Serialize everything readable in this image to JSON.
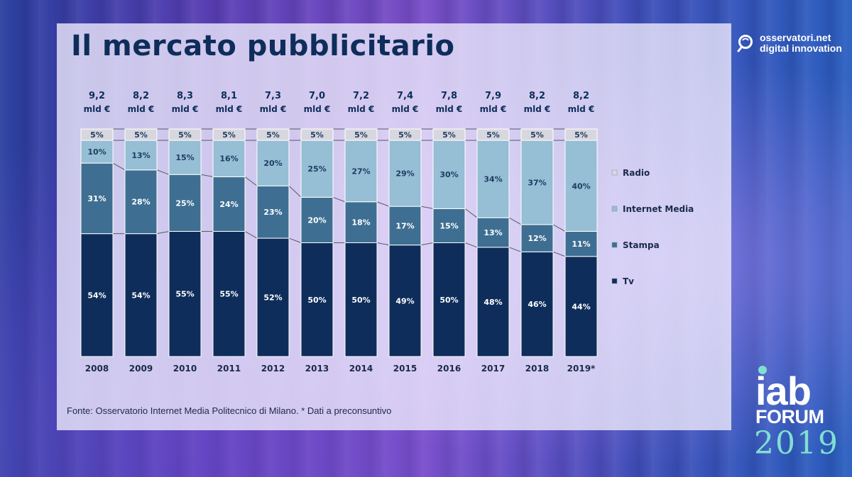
{
  "title": "Il mercato pubblicitario",
  "brand": {
    "line1": "osservatori.net",
    "line2": "digital innovation"
  },
  "footer": "Fonte: Osservatorio Internet Media Politecnico di Milano. * Dati a preconsuntivo",
  "event": {
    "line1": "iab",
    "line2": "FORUM",
    "line3": "2019"
  },
  "colors": {
    "tv": "#0e2d5a",
    "stampa": "#3e6f92",
    "internet": "#96bed5",
    "radio": "#d8d7de",
    "text_dark": "#0e2d5a"
  },
  "chart_data": {
    "type": "bar",
    "stacked": true,
    "normalized": true,
    "categories": [
      "2008",
      "2009",
      "2010",
      "2011",
      "2012",
      "2013",
      "2014",
      "2015",
      "2016",
      "2017",
      "2018",
      "2019*"
    ],
    "totals": [
      {
        "value": "9,2",
        "unit": "mld €"
      },
      {
        "value": "8,2",
        "unit": "mld €"
      },
      {
        "value": "8,3",
        "unit": "mld €"
      },
      {
        "value": "8,1",
        "unit": "mld €"
      },
      {
        "value": "7,3",
        "unit": "mld €"
      },
      {
        "value": "7,0",
        "unit": "mld €"
      },
      {
        "value": "7,2",
        "unit": "mld €"
      },
      {
        "value": "7,4",
        "unit": "mld €"
      },
      {
        "value": "7,8",
        "unit": "mld €"
      },
      {
        "value": "7,9",
        "unit": "mld €"
      },
      {
        "value": "8,2",
        "unit": "mld €"
      },
      {
        "value": "8,2",
        "unit": "mld €"
      }
    ],
    "series": [
      {
        "name": "Tv",
        "color": "#0e2d5a",
        "values": [
          54,
          54,
          55,
          55,
          52,
          50,
          50,
          49,
          50,
          48,
          46,
          44
        ]
      },
      {
        "name": "Stampa",
        "color": "#3e6f92",
        "values": [
          31,
          28,
          25,
          24,
          23,
          20,
          18,
          17,
          15,
          13,
          12,
          11
        ]
      },
      {
        "name": "Internet Media",
        "color": "#96bed5",
        "values": [
          10,
          13,
          15,
          16,
          20,
          25,
          27,
          29,
          30,
          34,
          37,
          40
        ]
      },
      {
        "name": "Radio",
        "color": "#d8d7de",
        "values": [
          5,
          5,
          5,
          5,
          5,
          5,
          5,
          5,
          5,
          5,
          5,
          5
        ]
      }
    ],
    "legend": {
      "order": [
        "Radio",
        "Internet Media",
        "Stampa",
        "Tv"
      ],
      "placement": "right"
    },
    "value_suffix": "%"
  }
}
